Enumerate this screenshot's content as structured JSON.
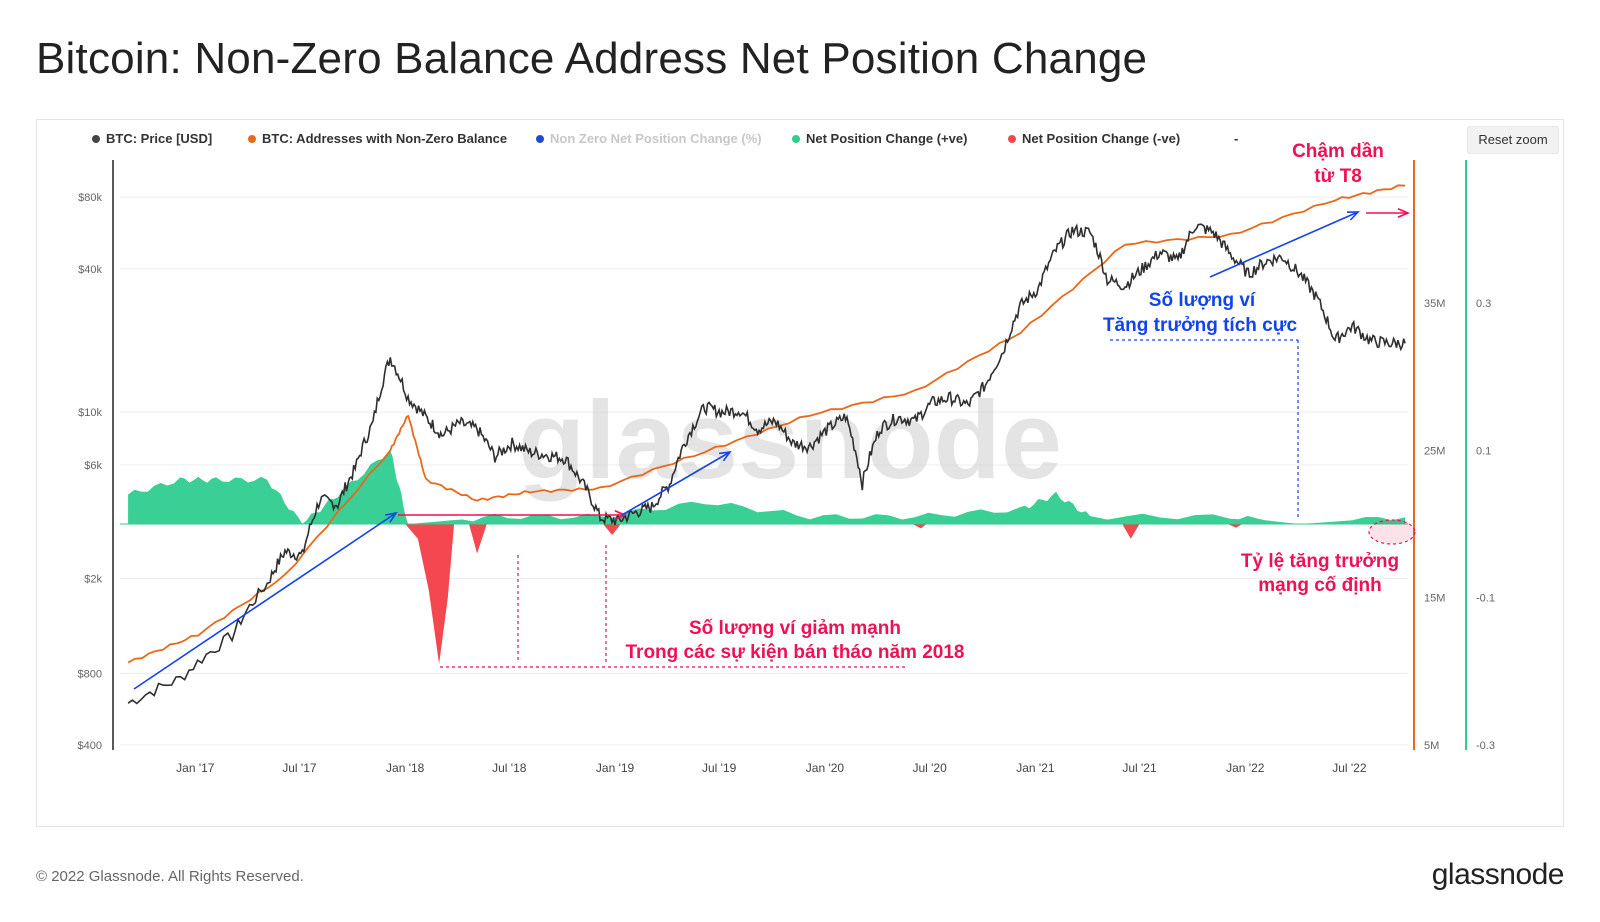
{
  "title": "Bitcoin: Non-Zero Balance Address Net Position Change",
  "reset_zoom_label": "Reset zoom",
  "footer": {
    "copyright": "© 2022 Glassnode. All Rights Reserved.",
    "brand": "glassnode"
  },
  "watermark": "glassnode",
  "legend": [
    {
      "label": "BTC: Price [USD]",
      "color": "#444444"
    },
    {
      "label": "BTC: Addresses with Non-Zero Balance",
      "color": "#e8681c"
    },
    {
      "label": "Non Zero Net Position Change (%)",
      "color": "#1f4ad0",
      "dimmed": true
    },
    {
      "label": "Net Position Change (+ve)",
      "color": "#2ecc8f"
    },
    {
      "label": "Net Position Change (-ve)",
      "color": "#f5474f"
    },
    {
      "label": "-",
      "color": ""
    }
  ],
  "colors": {
    "price": "#2f2f2f",
    "addresses": "#e8681c",
    "positive": "#2ecc8f",
    "negative": "#f5474f",
    "annotation_red": "#ee1155",
    "annotation_blue": "#1144ee"
  },
  "annotations": {
    "slowing_line1": "Chậm dần",
    "slowing_line2": "từ T8",
    "wallets_line1": "Số lượng ví",
    "wallets_line2": "Tăng trưởng tích cực",
    "drop_line1": "Số lượng ví giảm mạnh",
    "drop_line2": "Trong các sự kiện bán tháo năm 2018",
    "fixed_line1": "Tỷ lệ tăng trưởng",
    "fixed_line2": "mạng cố định"
  },
  "chart_data": {
    "type": "line",
    "x_axis": {
      "ticks": [
        "Jan '17",
        "Jul '17",
        "Jan '18",
        "Jul '18",
        "Jan '19",
        "Jul '19",
        "Jan '20",
        "Jul '20",
        "Jan '21",
        "Jul '21",
        "Jan '22",
        "Jul '22"
      ],
      "range": [
        "2016-09",
        "2022-10"
      ]
    },
    "y_axis_left": {
      "label": "",
      "scale": "log",
      "ticks": [
        "$400",
        "$800",
        "$2k",
        "$6k",
        "$10k",
        "$40k",
        "$80k"
      ],
      "range": [
        400,
        90000
      ]
    },
    "y_axis_right1": {
      "ticks": [
        "5M",
        "15M",
        "25M",
        "35M"
      ],
      "range": [
        5000000,
        46000000
      ]
    },
    "y_axis_right2": {
      "ticks": [
        "-0.3",
        "-0.1",
        "0.1",
        "0.3"
      ],
      "range": [
        -0.3,
        0.52
      ]
    },
    "series": [
      {
        "name": "BTC: Price [USD]",
        "axis": "left",
        "points": [
          [
            "2016-09",
            600
          ],
          [
            "2016-12",
            760
          ],
          [
            "2017-03",
            1150
          ],
          [
            "2017-05",
            1900
          ],
          [
            "2017-06",
            2600
          ],
          [
            "2017-07",
            2500
          ],
          [
            "2017-08",
            4300
          ],
          [
            "2017-09",
            4100
          ],
          [
            "2017-10",
            5800
          ],
          [
            "2017-11",
            9000
          ],
          [
            "2017-12",
            17000
          ],
          [
            "2018-01",
            11500
          ],
          [
            "2018-02",
            9500
          ],
          [
            "2018-03",
            8000
          ],
          [
            "2018-04",
            9000
          ],
          [
            "2018-05",
            8500
          ],
          [
            "2018-06",
            6500
          ],
          [
            "2018-07",
            7400
          ],
          [
            "2018-08",
            6800
          ],
          [
            "2018-09",
            6600
          ],
          [
            "2018-10",
            6400
          ],
          [
            "2018-11",
            5000
          ],
          [
            "2018-12",
            3600
          ],
          [
            "2019-01",
            3500
          ],
          [
            "2019-02",
            3800
          ],
          [
            "2019-03",
            4000
          ],
          [
            "2019-04",
            5000
          ],
          [
            "2019-05",
            7800
          ],
          [
            "2019-06",
            10500
          ],
          [
            "2019-07",
            10000
          ],
          [
            "2019-08",
            10200
          ],
          [
            "2019-09",
            8500
          ],
          [
            "2019-10",
            9200
          ],
          [
            "2019-11",
            7400
          ],
          [
            "2019-12",
            7200
          ],
          [
            "2020-01",
            8500
          ],
          [
            "2020-02",
            9600
          ],
          [
            "2020-03",
            5000
          ],
          [
            "2020-04",
            8600
          ],
          [
            "2020-05",
            9500
          ],
          [
            "2020-06",
            9200
          ],
          [
            "2020-07",
            11000
          ],
          [
            "2020-08",
            11500
          ],
          [
            "2020-09",
            10700
          ],
          [
            "2020-10",
            13000
          ],
          [
            "2020-11",
            18000
          ],
          [
            "2020-12",
            28000
          ],
          [
            "2021-01",
            33000
          ],
          [
            "2021-02",
            48000
          ],
          [
            "2021-03",
            58000
          ],
          [
            "2021-04",
            57000
          ],
          [
            "2021-05",
            36000
          ],
          [
            "2021-06",
            34000
          ],
          [
            "2021-07",
            40000
          ],
          [
            "2021-08",
            47000
          ],
          [
            "2021-09",
            43000
          ],
          [
            "2021-10",
            61000
          ],
          [
            "2021-11",
            57000
          ],
          [
            "2021-12",
            46000
          ],
          [
            "2022-01",
            38000
          ],
          [
            "2022-02",
            43000
          ],
          [
            "2022-03",
            45000
          ],
          [
            "2022-04",
            38000
          ],
          [
            "2022-05",
            30000
          ],
          [
            "2022-06",
            20000
          ],
          [
            "2022-07",
            23000
          ],
          [
            "2022-08",
            20000
          ],
          [
            "2022-09",
            19500
          ],
          [
            "2022-10",
            19500
          ]
        ]
      },
      {
        "name": "BTC: Addresses with Non-Zero Balance",
        "axis": "right1",
        "points": [
          [
            "2016-09",
            10600000
          ],
          [
            "2017-01",
            12500000
          ],
          [
            "2017-06",
            16500000
          ],
          [
            "2017-12",
            25000000
          ],
          [
            "2018-01",
            27400000
          ],
          [
            "2018-02",
            23000000
          ],
          [
            "2018-05",
            21600000
          ],
          [
            "2018-08",
            22200000
          ],
          [
            "2018-12",
            22400000
          ],
          [
            "2019-06",
            24900000
          ],
          [
            "2019-12",
            27400000
          ],
          [
            "2020-06",
            29000000
          ],
          [
            "2020-12",
            33000000
          ],
          [
            "2021-06",
            39000000
          ],
          [
            "2021-12",
            39600000
          ],
          [
            "2022-06",
            42000000
          ],
          [
            "2022-10",
            43000000
          ]
        ]
      },
      {
        "name": "Net Position Change (+ve)",
        "axis": "right2",
        "points": [
          [
            "2016-09",
            0.04
          ],
          [
            "2016-12",
            0.06
          ],
          [
            "2017-02",
            0.06
          ],
          [
            "2017-05",
            0.06
          ],
          [
            "2017-07",
            0.0
          ],
          [
            "2017-09",
            0.04
          ],
          [
            "2017-12",
            0.1
          ],
          [
            "2018-01",
            0.0
          ],
          [
            "2018-06",
            0.01
          ],
          [
            "2018-12",
            0.01
          ],
          [
            "2019-06",
            0.03
          ],
          [
            "2019-12",
            0.01
          ],
          [
            "2020-06",
            0.01
          ],
          [
            "2020-12",
            0.02
          ],
          [
            "2021-02",
            0.04
          ],
          [
            "2021-04",
            0.01
          ],
          [
            "2021-12",
            0.01
          ],
          [
            "2022-04",
            0.0
          ],
          [
            "2022-10",
            0.01
          ]
        ]
      },
      {
        "name": "Net Position Change (-ve)",
        "axis": "right2",
        "points": [
          [
            "2018-01",
            -0.01
          ],
          [
            "2018-02",
            -0.09
          ],
          [
            "2018-03",
            -0.19
          ],
          [
            "2018-05",
            -0.04
          ],
          [
            "2018-12",
            -0.015
          ],
          [
            "2021-06",
            -0.02
          ],
          [
            "2021-12",
            -0.005
          ]
        ]
      }
    ]
  }
}
